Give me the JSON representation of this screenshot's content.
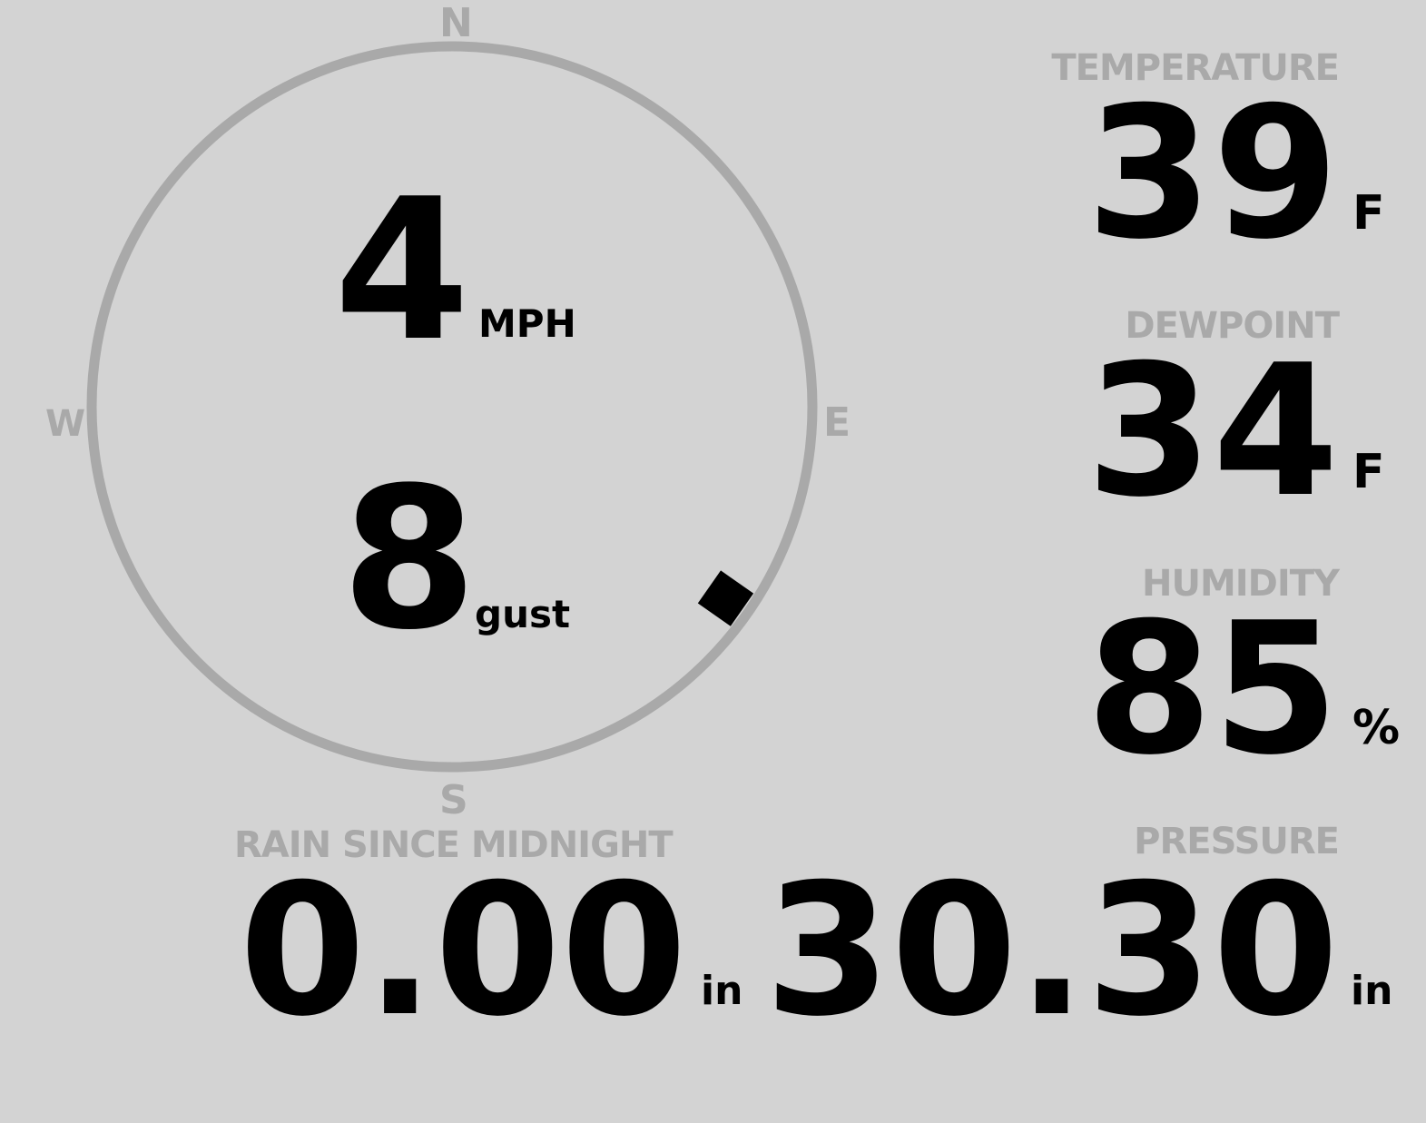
{
  "colors": {
    "background": "#d3d3d3",
    "label": "#a9a9a9",
    "value": "#000000",
    "ring": "#a9a9a9"
  },
  "compass": {
    "north": "N",
    "east": "E",
    "south": "S",
    "west": "W",
    "wind_direction_deg": 125
  },
  "wind": {
    "speed": "4",
    "speed_unit": "MPH",
    "gust": "8",
    "gust_unit": "gust"
  },
  "temperature": {
    "label": "TEMPERATURE",
    "value": "39",
    "unit": "F"
  },
  "dewpoint": {
    "label": "DEWPOINT",
    "value": "34",
    "unit": "F"
  },
  "humidity": {
    "label": "HUMIDITY",
    "value": "85",
    "unit": "%"
  },
  "rain": {
    "label": "RAIN SINCE MIDNIGHT",
    "value": "0.00",
    "unit": "in"
  },
  "pressure": {
    "label": "PRESSURE",
    "value": "30.30",
    "unit": "in"
  }
}
